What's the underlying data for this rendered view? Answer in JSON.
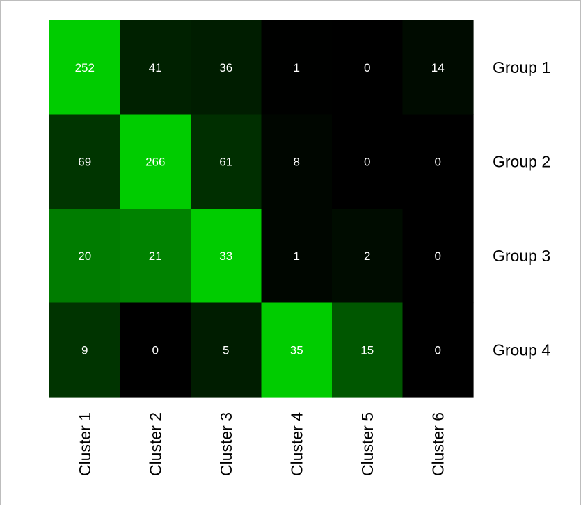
{
  "chart_data": {
    "type": "heatmap",
    "title": "",
    "xlabel": "",
    "ylabel": "",
    "columns": [
      "Cluster 1",
      "Cluster 2",
      "Cluster 3",
      "Cluster 4",
      "Cluster 5",
      "Cluster 6"
    ],
    "rows": [
      "Group 1",
      "Group 2",
      "Group 3",
      "Group 4"
    ],
    "values": [
      [
        252,
        41,
        36,
        1,
        0,
        14
      ],
      [
        69,
        266,
        61,
        8,
        0,
        0
      ],
      [
        20,
        21,
        33,
        1,
        2,
        0
      ],
      [
        9,
        0,
        5,
        35,
        15,
        0
      ]
    ],
    "color_scale": {
      "low": "#000000",
      "high": "#00cc00",
      "normalization": "per-row"
    },
    "value_text_color": "#ffffff",
    "grid": false,
    "legend": "none"
  }
}
